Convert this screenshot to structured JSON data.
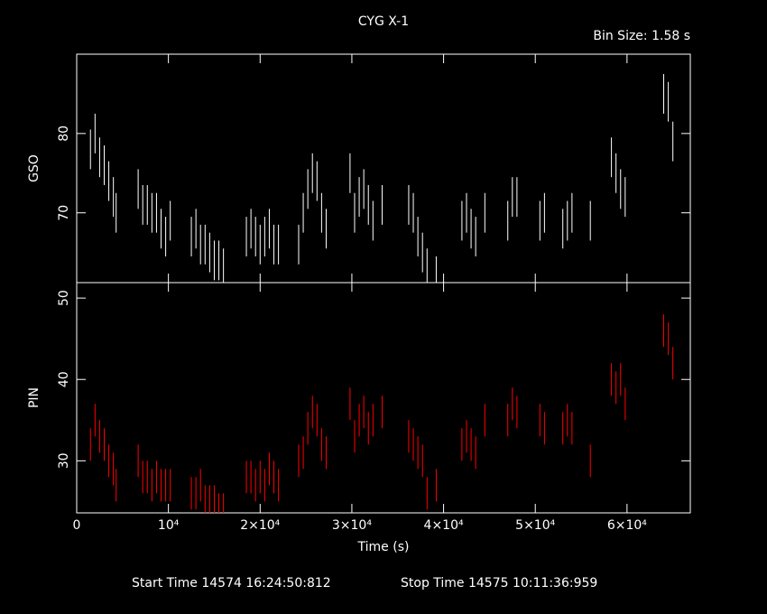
{
  "title": "CYG X-1",
  "subtitle": "Bin Size: 1.58 s",
  "start_time": "Start Time 14574 16:24:50:812",
  "stop_time": "Stop Time 14575 10:11:36:959",
  "chart_data": [
    {
      "type": "errorbar",
      "ylabel": "GSO",
      "color": "#ffffff",
      "x": [
        1500,
        2000,
        2500,
        3000,
        3500,
        4000,
        4300,
        6700,
        7200,
        7700,
        8200,
        8700,
        9200,
        9700,
        10200,
        12500,
        13000,
        13500,
        14000,
        14500,
        15000,
        15500,
        16000,
        18500,
        19000,
        19500,
        20000,
        20500,
        21000,
        21500,
        22000,
        24200,
        24700,
        25200,
        25700,
        26200,
        26700,
        27200,
        29800,
        30300,
        30800,
        31300,
        31800,
        32300,
        33300,
        36200,
        36700,
        37200,
        37700,
        38200,
        39200,
        42000,
        42500,
        43000,
        43500,
        44500,
        47000,
        47500,
        48000,
        50500,
        51000,
        53000,
        53500,
        54000,
        56000,
        58300,
        58800,
        59300,
        59800,
        64000,
        64500,
        65000
      ],
      "values": [
        78,
        80,
        77,
        76,
        74,
        72,
        70,
        73,
        71,
        71,
        70,
        70,
        68,
        67,
        69,
        67,
        68,
        66,
        66,
        65,
        64,
        64,
        63,
        67,
        68,
        67,
        66,
        67,
        68,
        66,
        66,
        66,
        70,
        73,
        75,
        74,
        70,
        68,
        75,
        70,
        72,
        73,
        71,
        69,
        71,
        71,
        70,
        67,
        65,
        63,
        62,
        69,
        70,
        68,
        67,
        70,
        69,
        72,
        72,
        69,
        70,
        68,
        69,
        70,
        69,
        77,
        75,
        73,
        72,
        85,
        84,
        79
      ],
      "error": 2.5,
      "xlim": [
        0,
        66900
      ],
      "ylim": [
        61.2,
        90
      ],
      "yticks": [
        70,
        80
      ]
    },
    {
      "type": "errorbar",
      "ylabel": "PIN",
      "xlabel": "Time (s)",
      "color": "#ff0000",
      "x": [
        1500,
        2000,
        2500,
        3000,
        3500,
        4000,
        4300,
        6700,
        7200,
        7700,
        8200,
        8700,
        9200,
        9700,
        10200,
        12500,
        13000,
        13500,
        14000,
        14500,
        15000,
        15500,
        16000,
        18500,
        19000,
        19500,
        20000,
        20500,
        21000,
        21500,
        22000,
        24200,
        24700,
        25200,
        25700,
        26200,
        26700,
        27200,
        29800,
        30300,
        30800,
        31300,
        31800,
        32300,
        33300,
        36200,
        36700,
        37200,
        37700,
        38200,
        39200,
        42000,
        42500,
        43000,
        43500,
        44500,
        47000,
        47500,
        48000,
        50500,
        51000,
        53000,
        53500,
        54000,
        56000,
        58300,
        58800,
        59300,
        59800,
        64000,
        64500,
        65000
      ],
      "values": [
        32,
        35,
        33,
        32,
        30,
        29,
        27,
        30,
        28,
        28,
        27,
        28,
        27,
        27,
        27,
        26,
        26,
        27,
        25,
        25,
        25,
        24,
        24,
        28,
        28,
        27,
        28,
        27,
        29,
        28,
        27,
        30,
        31,
        34,
        36,
        35,
        32,
        31,
        37,
        33,
        35,
        36,
        34,
        35,
        36,
        33,
        32,
        31,
        30,
        26,
        27,
        32,
        33,
        32,
        31,
        35,
        35,
        37,
        36,
        35,
        34,
        34,
        35,
        34,
        30,
        40,
        39,
        40,
        37,
        46,
        45,
        42
      ],
      "error": 2,
      "xlim": [
        0,
        66900
      ],
      "ylim": [
        23.6,
        51.9
      ],
      "yticks": [
        30,
        40,
        50
      ],
      "xticks": [
        0,
        {
          "value": 10000,
          "label": "10⁴"
        },
        {
          "value": 20000,
          "label": "2×10⁴"
        },
        {
          "value": 30000,
          "label": "3×10⁴"
        },
        {
          "value": 40000,
          "label": "4×10⁴"
        },
        {
          "value": 50000,
          "label": "5×10⁴"
        },
        {
          "value": 60000,
          "label": "6×10⁴"
        }
      ]
    }
  ]
}
